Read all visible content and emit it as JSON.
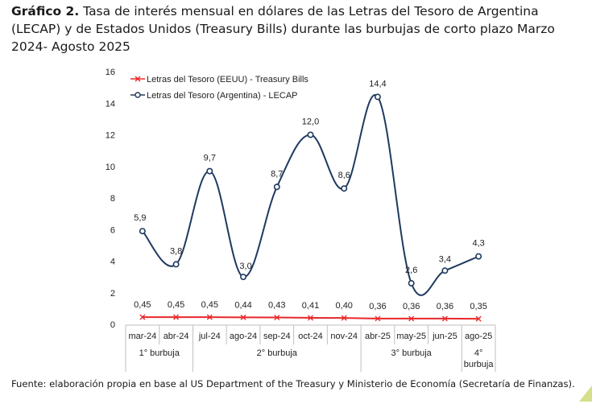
{
  "title": {
    "prefix": "Gráfico 2.",
    "text": " Tasa de interés mensual en dólares de las Letras del Tesoro de Argentina (LECAP) y de Estados Unidos (Treasury Bills) durante las burbujas de corto plazo Marzo 2024- Agosto 2025"
  },
  "source": "Fuente: elaboración propia en base al US Department of the Treasury y Ministerio de Economía (Secretaría de Finanzas).",
  "chart_data": {
    "type": "line",
    "categories": [
      "mar-24",
      "abr-24",
      "jul-24",
      "ago-24",
      "sep-24",
      "oct-24",
      "nov-24",
      "abr-25",
      "may-25",
      "jun-25",
      "ago-25"
    ],
    "groups": [
      {
        "label": "1° burbuja",
        "from": 0,
        "to": 1
      },
      {
        "label": "2° burbuja",
        "from": 2,
        "to": 6
      },
      {
        "label": "3° burbuja",
        "from": 7,
        "to": 9
      },
      {
        "label": "4° burbuja",
        "from": 10,
        "to": 10
      }
    ],
    "series": [
      {
        "name": "Letras del Tesoro (EEUU) - Treasury Bills",
        "color": "#e8282b",
        "marker": "x",
        "values": [
          0.45,
          0.45,
          0.45,
          0.44,
          0.43,
          0.41,
          0.4,
          0.36,
          0.36,
          0.36,
          0.35
        ],
        "labels": [
          "0,45",
          "0,45",
          "0,45",
          "0,44",
          "0,43",
          "0,41",
          "0,40",
          "0,36",
          "0,36",
          "0,36",
          "0,35"
        ]
      },
      {
        "name": "Letras del Tesoro (Argentina) - LECAP",
        "color": "#1f3a5f",
        "marker": "circle",
        "values": [
          5.9,
          3.8,
          9.7,
          3.0,
          8.7,
          12.0,
          8.6,
          14.4,
          2.6,
          3.4,
          4.3
        ],
        "labels": [
          "5,9",
          "3,8",
          "9,7",
          "3,0",
          "8,7",
          "12,0",
          "8,6",
          "14,4",
          "2,6",
          "3,4",
          "4,3"
        ]
      }
    ],
    "ylim": [
      0,
      16
    ],
    "yticks": [
      0,
      2,
      4,
      6,
      8,
      10,
      12,
      14,
      16
    ],
    "grid": false,
    "legend": "top-left",
    "xlabel": "",
    "ylabel": ""
  }
}
